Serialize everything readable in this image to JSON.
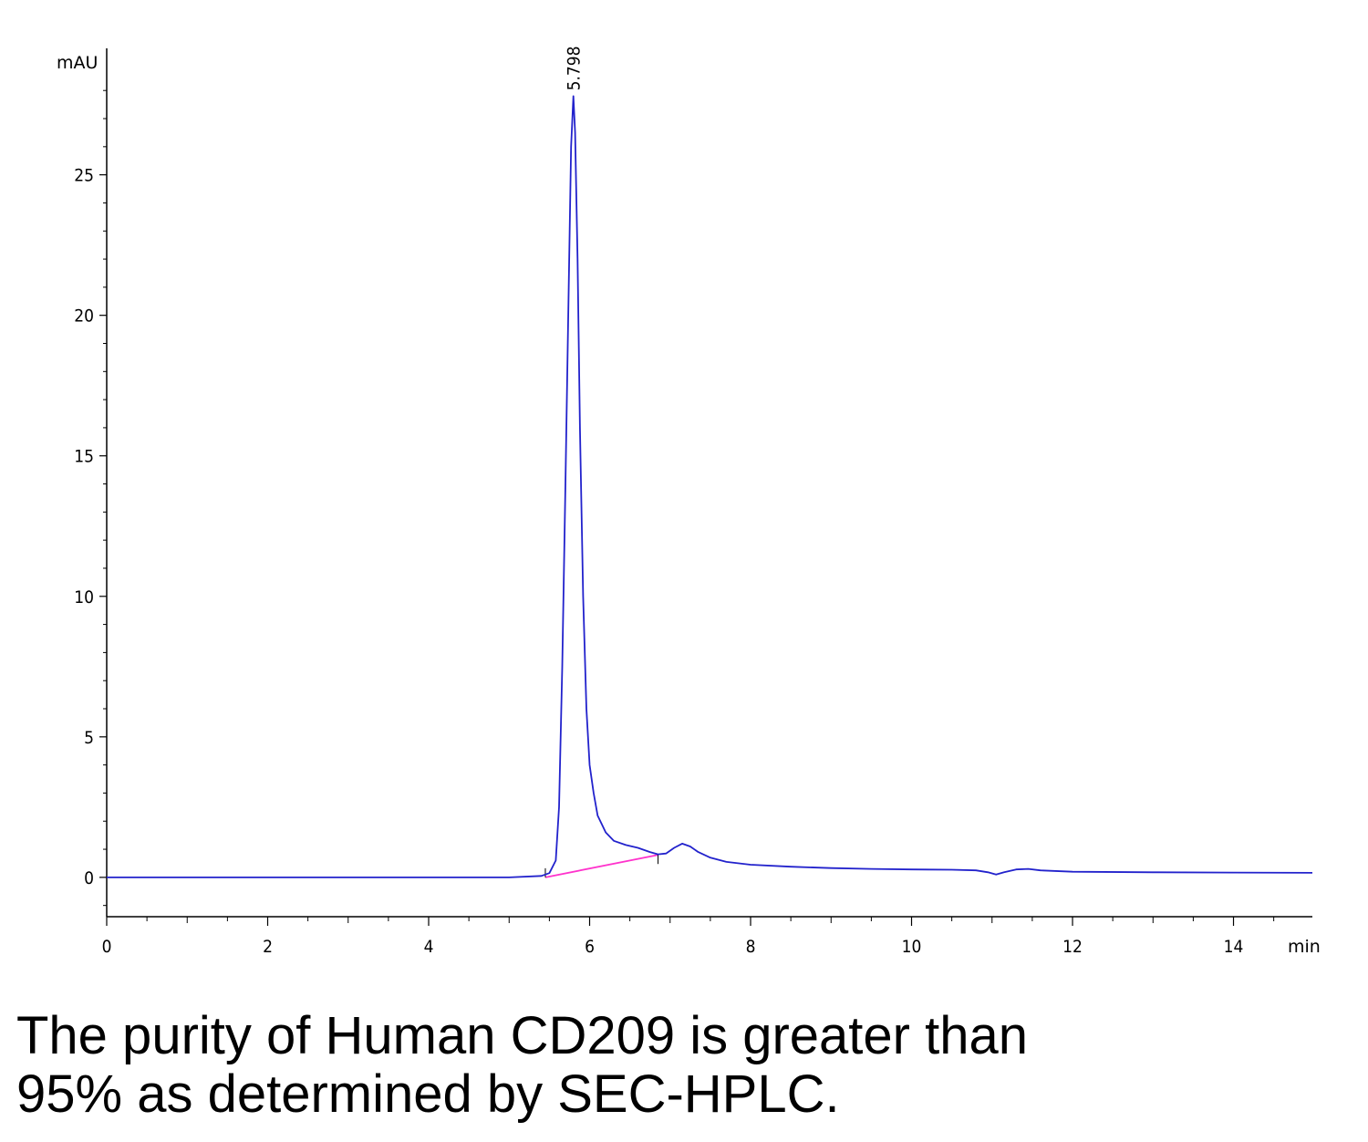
{
  "chart_data": {
    "type": "line",
    "title": "",
    "xlabel": "min",
    "ylabel": "mAU",
    "xlim": [
      0,
      14.98
    ],
    "ylim": [
      -1.4,
      29.5
    ],
    "x_ticks": [
      0,
      2,
      4,
      6,
      8,
      10,
      12,
      14
    ],
    "y_ticks": [
      0,
      5,
      10,
      15,
      20,
      25
    ],
    "grid": false,
    "colors": {
      "trace": "#2222cc",
      "baseline": "#ff33cc",
      "axis": "#000000"
    },
    "peak_labels": [
      {
        "x": 5.798,
        "y": 27.8,
        "text": "5.798"
      }
    ],
    "series": [
      {
        "x": [
          0,
          1,
          2,
          3,
          4,
          5,
          5.4,
          5.5,
          5.58,
          5.62,
          5.66,
          5.7,
          5.74,
          5.77,
          5.798,
          5.82,
          5.85,
          5.88,
          5.92,
          5.96,
          6.0,
          6.05,
          6.1,
          6.2,
          6.3,
          6.45,
          6.6,
          6.75,
          6.85,
          6.95,
          7.05,
          7.15,
          7.25,
          7.35,
          7.5,
          7.7,
          8.0,
          8.5,
          9,
          9.5,
          10,
          10.5,
          10.8,
          10.95,
          11.05,
          11.15,
          11.3,
          11.45,
          11.6,
          12,
          13,
          14,
          14.98
        ],
        "y": [
          0.0,
          0.0,
          0.0,
          0.0,
          0.0,
          0.0,
          0.05,
          0.15,
          0.6,
          2.5,
          7.5,
          14.0,
          21.0,
          26.0,
          27.8,
          26.5,
          22.0,
          16.0,
          10.0,
          6.0,
          4.0,
          3.0,
          2.2,
          1.6,
          1.3,
          1.15,
          1.05,
          0.9,
          0.82,
          0.85,
          1.05,
          1.2,
          1.1,
          0.9,
          0.7,
          0.55,
          0.45,
          0.38,
          0.33,
          0.3,
          0.28,
          0.27,
          0.25,
          0.18,
          0.1,
          0.18,
          0.28,
          0.3,
          0.25,
          0.2,
          0.18,
          0.17,
          0.16
        ]
      }
    ],
    "integration_baseline": {
      "x": [
        5.45,
        6.85
      ],
      "y": [
        0.0,
        0.8
      ]
    }
  },
  "caption": {
    "line1": "The purity of Human CD209 is greater than",
    "line2": "95% as determined by SEC-HPLC."
  }
}
